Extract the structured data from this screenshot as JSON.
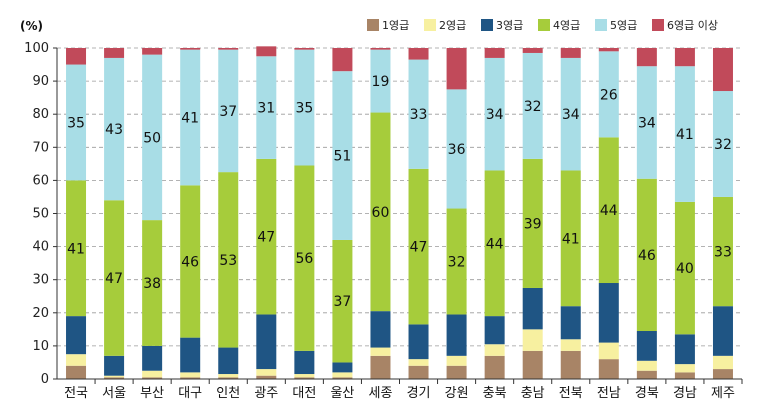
{
  "chart_data": {
    "type": "bar",
    "stacked": true,
    "unit_label": "(%)",
    "ylim": [
      0,
      100
    ],
    "yticks": [
      0,
      10,
      20,
      30,
      40,
      50,
      60,
      70,
      80,
      90,
      100
    ],
    "grid": true,
    "legend_position": "top-right",
    "categories": [
      "전국",
      "서울",
      "부산",
      "대구",
      "인천",
      "광주",
      "대전",
      "울산",
      "세종",
      "경기",
      "강원",
      "충북",
      "충남",
      "전북",
      "전남",
      "경북",
      "경남",
      "제주"
    ],
    "series": [
      {
        "name": "1영급",
        "color": "#a88466",
        "values": [
          4,
          0.5,
          0.5,
          0.5,
          0.5,
          1,
          0.5,
          0.5,
          7,
          4,
          4,
          7,
          8.5,
          8.5,
          6,
          2.5,
          2,
          3
        ]
      },
      {
        "name": "2영급",
        "color": "#f7f0a0",
        "values": [
          3.5,
          0.5,
          2,
          1.5,
          1,
          2,
          1,
          1.5,
          2.5,
          2,
          3,
          3.5,
          6.5,
          3.5,
          5,
          3,
          2.5,
          4
        ]
      },
      {
        "name": "3영급",
        "color": "#1f5584",
        "values": [
          11.5,
          6,
          7.5,
          10.5,
          8,
          16.5,
          7,
          3,
          11,
          10.5,
          12.5,
          8.5,
          12.5,
          10,
          18,
          9,
          9,
          15
        ]
      },
      {
        "name": "4영급",
        "color": "#a6cc3b",
        "values": [
          41,
          47,
          38,
          46,
          53,
          47,
          56,
          37,
          60,
          47,
          32,
          44,
          39,
          41,
          44,
          46,
          40,
          33
        ]
      },
      {
        "name": "5영급",
        "color": "#a8dde6",
        "values": [
          35,
          43,
          50,
          41,
          37,
          31,
          35,
          51,
          19,
          33,
          36,
          34,
          32,
          34,
          26,
          34,
          41,
          32
        ]
      },
      {
        "name": "6영급 이상",
        "color": "#c14a5a",
        "values": [
          5,
          3,
          2,
          0.5,
          0.5,
          3,
          0.5,
          7,
          0.5,
          3.5,
          12.5,
          3,
          1.5,
          3,
          1,
          5.5,
          5.5,
          13
        ]
      }
    ],
    "data_labels": {
      "4영급": [
        41,
        47,
        38,
        46,
        53,
        47,
        56,
        37,
        60,
        47,
        32,
        44,
        39,
        41,
        44,
        46,
        40,
        33
      ],
      "5영급": [
        35,
        43,
        50,
        41,
        37,
        31,
        35,
        51,
        19,
        33,
        36,
        34,
        32,
        34,
        26,
        34,
        41,
        32
      ]
    }
  }
}
